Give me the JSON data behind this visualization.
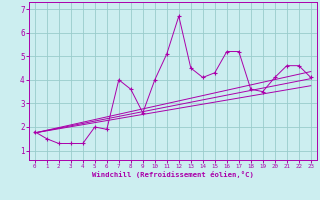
{
  "xlabel": "Windchill (Refroidissement éolien,°C)",
  "bg_color": "#cceef0",
  "line_color": "#aa00aa",
  "grid_color": "#99cccc",
  "xlim": [
    -0.5,
    23.5
  ],
  "ylim": [
    0.6,
    7.3
  ],
  "xticks": [
    0,
    1,
    2,
    3,
    4,
    5,
    6,
    7,
    8,
    9,
    10,
    11,
    12,
    13,
    14,
    15,
    16,
    17,
    18,
    19,
    20,
    21,
    22,
    23
  ],
  "yticks": [
    1,
    2,
    3,
    4,
    5,
    6,
    7
  ],
  "scatter_x": [
    0,
    1,
    2,
    3,
    4,
    5,
    6,
    7,
    8,
    9,
    10,
    11,
    12,
    13,
    14,
    15,
    16,
    17,
    18,
    19,
    20,
    21,
    22,
    23
  ],
  "scatter_y": [
    1.8,
    1.5,
    1.3,
    1.3,
    1.3,
    2.0,
    1.9,
    4.0,
    3.6,
    2.6,
    4.0,
    5.1,
    6.7,
    4.5,
    4.1,
    4.3,
    5.2,
    5.2,
    3.6,
    3.5,
    4.1,
    4.6,
    4.6,
    4.1
  ],
  "line1_x": [
    0,
    23
  ],
  "line1_y": [
    1.75,
    4.05
  ],
  "line2_x": [
    0,
    23
  ],
  "line2_y": [
    1.75,
    3.75
  ],
  "line3_x": [
    0,
    23
  ],
  "line3_y": [
    1.75,
    4.35
  ]
}
